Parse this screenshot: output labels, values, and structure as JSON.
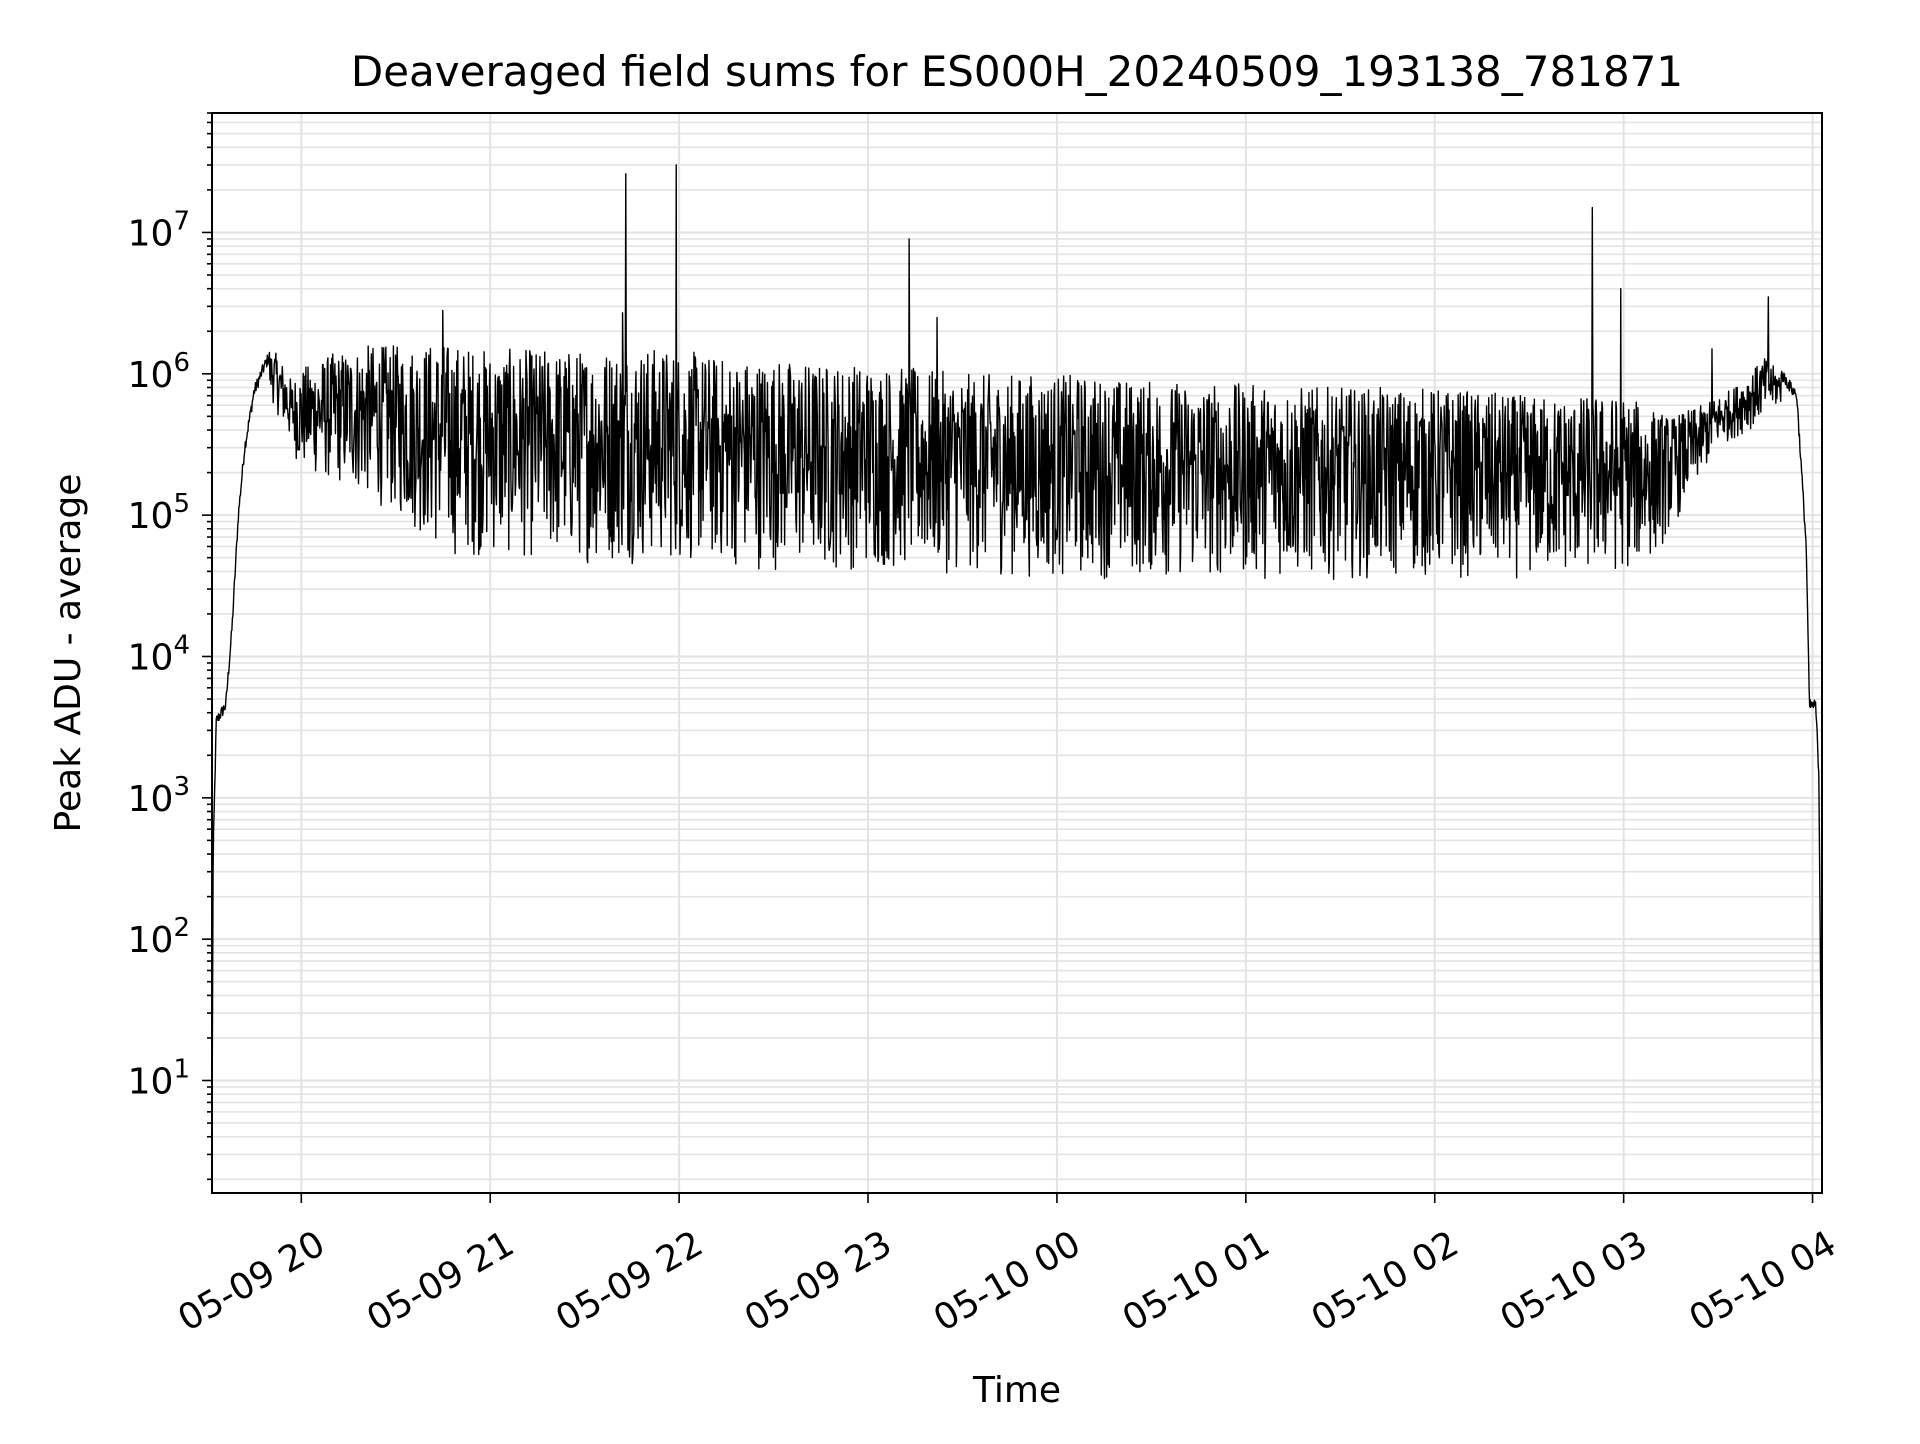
{
  "chart_data": {
    "type": "line",
    "title": "Deaveraged field sums for ES000H_20240509_193138_781871",
    "xlabel": "Time",
    "ylabel": "Peak ADU - average",
    "yscale": "log",
    "ylim": [
      1.6,
      70000000
    ],
    "xlim": [
      "2024-05-09 19:31:38",
      "2024-05-10 04:03:00"
    ],
    "grid": true,
    "legend": "none",
    "line_color": "#000000",
    "x_ticks": [
      {
        "value": "2024-05-09 20:00",
        "label": "05-09 20"
      },
      {
        "value": "2024-05-09 21:00",
        "label": "05-09 21"
      },
      {
        "value": "2024-05-09 22:00",
        "label": "05-09 22"
      },
      {
        "value": "2024-05-09 23:00",
        "label": "05-09 23"
      },
      {
        "value": "2024-05-10 00:00",
        "label": "05-10 00"
      },
      {
        "value": "2024-05-10 01:00",
        "label": "05-10 01"
      },
      {
        "value": "2024-05-10 02:00",
        "label": "05-10 02"
      },
      {
        "value": "2024-05-10 03:00",
        "label": "05-10 03"
      },
      {
        "value": "2024-05-10 04:00",
        "label": "05-10 04"
      }
    ],
    "y_ticks": [
      {
        "value": 10,
        "base": "10",
        "exp": "1"
      },
      {
        "value": 100,
        "base": "10",
        "exp": "2"
      },
      {
        "value": 1000,
        "base": "10",
        "exp": "3"
      },
      {
        "value": 10000,
        "base": "10",
        "exp": "4"
      },
      {
        "value": 100000,
        "base": "10",
        "exp": "5"
      },
      {
        "value": 1000000,
        "base": "10",
        "exp": "6"
      },
      {
        "value": 10000000,
        "base": "10",
        "exp": "7"
      }
    ],
    "series": [
      {
        "envelope_upper": [
          [
            "2024-05-09 19:31:38",
            4
          ],
          [
            "2024-05-09 19:32",
            400
          ],
          [
            "2024-05-09 19:33",
            3500
          ],
          [
            "2024-05-09 19:36",
            4500
          ],
          [
            "2024-05-09 19:38",
            16000
          ],
          [
            "2024-05-09 19:40",
            100000
          ],
          [
            "2024-05-09 19:42",
            300000
          ],
          [
            "2024-05-09 19:45",
            750000
          ],
          [
            "2024-05-09 19:48",
            1100000
          ],
          [
            "2024-05-09 19:51",
            1500000
          ],
          [
            "2024-05-09 19:54",
            1200000
          ],
          [
            "2024-05-09 19:57",
            900000
          ],
          [
            "2024-05-09 20:00",
            1100000
          ],
          [
            "2024-05-09 20:10",
            1400000
          ],
          [
            "2024-05-09 20:20",
            1600000
          ],
          [
            "2024-05-09 20:30",
            1600000
          ],
          [
            "2024-05-09 20:45",
            1700000
          ],
          [
            "2024-05-09 21:00",
            1500000
          ],
          [
            "2024-05-09 21:15",
            1500000
          ],
          [
            "2024-05-09 21:30",
            1500000
          ],
          [
            "2024-05-09 21:45",
            1600000
          ],
          [
            "2024-05-09 22:00",
            1500000
          ],
          [
            "2024-05-09 22:15",
            1300000
          ],
          [
            "2024-05-09 22:30",
            1300000
          ],
          [
            "2024-05-09 22:45",
            1200000
          ],
          [
            "2024-05-09 23:00",
            1200000
          ],
          [
            "2024-05-09 23:15",
            1100000
          ],
          [
            "2024-05-09 23:30",
            1000000
          ],
          [
            "2024-05-09 23:45",
            1000000
          ],
          [
            "2024-05-10 00:00",
            1000000
          ],
          [
            "2024-05-10 00:30",
            900000
          ],
          [
            "2024-05-10 01:00",
            850000
          ],
          [
            "2024-05-10 01:30",
            800000
          ],
          [
            "2024-05-10 02:00",
            800000
          ],
          [
            "2024-05-10 02:30",
            700000
          ],
          [
            "2024-05-10 03:00",
            700000
          ],
          [
            "2024-05-10 03:15",
            500000
          ],
          [
            "2024-05-10 03:25",
            600000
          ],
          [
            "2024-05-10 03:35",
            800000
          ],
          [
            "2024-05-10 03:45",
            1300000
          ],
          [
            "2024-05-10 03:50",
            1000000
          ],
          [
            "2024-05-10 03:55",
            700000
          ],
          [
            "2024-05-10 03:58",
            60000
          ],
          [
            "2024-05-10 03:59",
            4500
          ],
          [
            "2024-05-10 04:01",
            4500
          ],
          [
            "2024-05-10 04:02",
            1500
          ],
          [
            "2024-05-10 04:03",
            4
          ]
        ],
        "envelope_lower": [
          [
            "2024-05-09 19:50",
            700000
          ],
          [
            "2024-05-09 20:00",
            200000
          ],
          [
            "2024-05-09 20:15",
            150000
          ],
          [
            "2024-05-09 20:30",
            100000
          ],
          [
            "2024-05-09 20:45",
            50000
          ],
          [
            "2024-05-09 21:00",
            50000
          ],
          [
            "2024-05-09 21:30",
            45000
          ],
          [
            "2024-05-09 22:00",
            45000
          ],
          [
            "2024-05-09 22:30",
            40000
          ],
          [
            "2024-05-09 23:00",
            40000
          ],
          [
            "2024-05-09 23:30",
            38000
          ],
          [
            "2024-05-10 00:00",
            35000
          ],
          [
            "2024-05-10 00:30",
            35000
          ],
          [
            "2024-05-10 01:00",
            35000
          ],
          [
            "2024-05-10 01:30",
            35000
          ],
          [
            "2024-05-10 02:00",
            35000
          ],
          [
            "2024-05-10 02:30",
            35000
          ],
          [
            "2024-05-10 03:00",
            38000
          ],
          [
            "2024-05-10 03:10",
            50000
          ],
          [
            "2024-05-10 03:20",
            120000
          ],
          [
            "2024-05-10 03:30",
            300000
          ],
          [
            "2024-05-10 03:40",
            400000
          ],
          [
            "2024-05-10 03:50",
            600000
          ]
        ],
        "spikes": [
          [
            "2024-05-09 20:45",
            2800000
          ],
          [
            "2024-05-09 21:42",
            2700000
          ],
          [
            "2024-05-09 21:43",
            26000000
          ],
          [
            "2024-05-09 21:59",
            30000000
          ],
          [
            "2024-05-09 23:13",
            9000000
          ],
          [
            "2024-05-09 23:22",
            2500000
          ],
          [
            "2024-05-10 02:50",
            15000000
          ],
          [
            "2024-05-10 02:59",
            4000000
          ],
          [
            "2024-05-10 03:28",
            1500000
          ],
          [
            "2024-05-10 03:46",
            3500000
          ]
        ]
      }
    ]
  }
}
